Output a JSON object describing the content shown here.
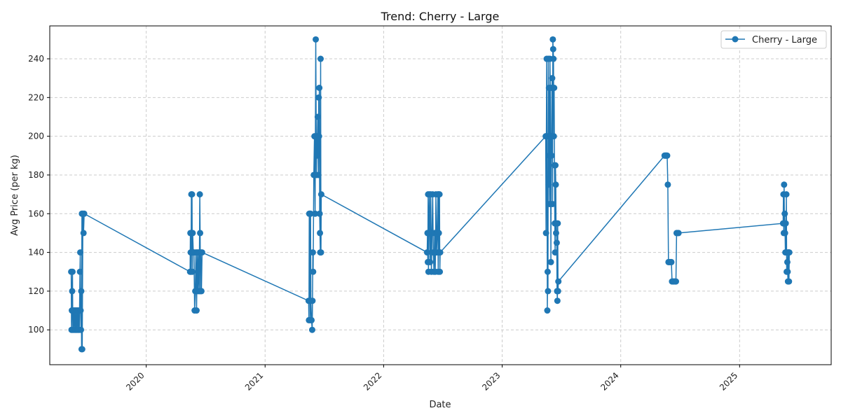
{
  "chart_data": {
    "type": "line",
    "title": "Trend: Cherry - Large",
    "xlabel": "Date",
    "ylabel": "Avg Price (per kg)",
    "x_ticks": [
      "2020",
      "2021",
      "2022",
      "2023",
      "2024",
      "2025"
    ],
    "y_ticks": [
      100,
      120,
      140,
      160,
      180,
      200,
      220,
      240
    ],
    "xlim": [
      "2019-03-10",
      "2025-10-10"
    ],
    "ylim": [
      82,
      257
    ],
    "grid": true,
    "legend_position": "top-right",
    "colors": {
      "series": "#1f77b4",
      "grid": "#cccccc"
    },
    "series": [
      {
        "name": "Cherry - Large",
        "marker": "circle",
        "points": [
          [
            "2019-05-15",
            130
          ],
          [
            "2019-05-16",
            100
          ],
          [
            "2019-05-17",
            110
          ],
          [
            "2019-05-18",
            120
          ],
          [
            "2019-05-19",
            130
          ],
          [
            "2019-05-20",
            100
          ],
          [
            "2019-05-22",
            110
          ],
          [
            "2019-05-24",
            100
          ],
          [
            "2019-05-26",
            110
          ],
          [
            "2019-05-28",
            100
          ],
          [
            "2019-05-30",
            110
          ],
          [
            "2019-06-01",
            100
          ],
          [
            "2019-06-03",
            110
          ],
          [
            "2019-06-05",
            100
          ],
          [
            "2019-06-07",
            110
          ],
          [
            "2019-06-09",
            100
          ],
          [
            "2019-06-11",
            130
          ],
          [
            "2019-06-12",
            140
          ],
          [
            "2019-06-13",
            110
          ],
          [
            "2019-06-14",
            100
          ],
          [
            "2019-06-15",
            120
          ],
          [
            "2019-06-16",
            90
          ],
          [
            "2019-06-17",
            160
          ],
          [
            "2019-06-18",
            90
          ],
          [
            "2019-06-20",
            160
          ],
          [
            "2019-06-22",
            150
          ],
          [
            "2019-06-24",
            160
          ],
          [
            "2020-05-15",
            130
          ],
          [
            "2020-05-16",
            150
          ],
          [
            "2020-05-17",
            140
          ],
          [
            "2020-05-18",
            130
          ],
          [
            "2020-05-19",
            170
          ],
          [
            "2020-05-20",
            140
          ],
          [
            "2020-05-21",
            170
          ],
          [
            "2020-05-22",
            130
          ],
          [
            "2020-05-23",
            150
          ],
          [
            "2020-05-25",
            140
          ],
          [
            "2020-05-27",
            140
          ],
          [
            "2020-05-29",
            110
          ],
          [
            "2020-05-31",
            120
          ],
          [
            "2020-06-02",
            140
          ],
          [
            "2020-06-04",
            110
          ],
          [
            "2020-06-06",
            140
          ],
          [
            "2020-06-08",
            120
          ],
          [
            "2020-06-10",
            140
          ],
          [
            "2020-06-12",
            120
          ],
          [
            "2020-06-14",
            170
          ],
          [
            "2020-06-15",
            150
          ],
          [
            "2020-06-16",
            120
          ],
          [
            "2020-06-17",
            140
          ],
          [
            "2020-06-19",
            120
          ],
          [
            "2020-06-21",
            140
          ],
          [
            "2021-05-15",
            115
          ],
          [
            "2021-05-16",
            105
          ],
          [
            "2021-05-17",
            160
          ],
          [
            "2021-05-18",
            115
          ],
          [
            "2021-05-19",
            160
          ],
          [
            "2021-05-20",
            105
          ],
          [
            "2021-05-21",
            160
          ],
          [
            "2021-05-22",
            115
          ],
          [
            "2021-05-24",
            105
          ],
          [
            "2021-05-26",
            100
          ],
          [
            "2021-05-27",
            115
          ],
          [
            "2021-05-28",
            140
          ],
          [
            "2021-05-29",
            130
          ],
          [
            "2021-05-31",
            180
          ],
          [
            "2021-06-02",
            200
          ],
          [
            "2021-06-04",
            160
          ],
          [
            "2021-06-06",
            250
          ],
          [
            "2021-06-08",
            180
          ],
          [
            "2021-06-09",
            200
          ],
          [
            "2021-06-10",
            190
          ],
          [
            "2021-06-12",
            210
          ],
          [
            "2021-06-14",
            180
          ],
          [
            "2021-06-15",
            220
          ],
          [
            "2021-06-16",
            200
          ],
          [
            "2021-06-17",
            225
          ],
          [
            "2021-06-18",
            160
          ],
          [
            "2021-06-19",
            150
          ],
          [
            "2021-06-20",
            140
          ],
          [
            "2021-06-21",
            240
          ],
          [
            "2021-06-22",
            140
          ],
          [
            "2021-06-23",
            170
          ],
          [
            "2022-05-15",
            140
          ],
          [
            "2022-05-16",
            150
          ],
          [
            "2022-05-17",
            135
          ],
          [
            "2022-05-18",
            170
          ],
          [
            "2022-05-19",
            130
          ],
          [
            "2022-05-20",
            150
          ],
          [
            "2022-05-22",
            170
          ],
          [
            "2022-05-24",
            135
          ],
          [
            "2022-05-26",
            170
          ],
          [
            "2022-05-28",
            130
          ],
          [
            "2022-05-30",
            150
          ],
          [
            "2022-06-01",
            170
          ],
          [
            "2022-06-03",
            140
          ],
          [
            "2022-06-05",
            130
          ],
          [
            "2022-06-07",
            150
          ],
          [
            "2022-06-09",
            130
          ],
          [
            "2022-06-11",
            170
          ],
          [
            "2022-06-13",
            140
          ],
          [
            "2022-06-15",
            150
          ],
          [
            "2022-06-17",
            170
          ],
          [
            "2022-06-18",
            130
          ],
          [
            "2022-06-19",
            170
          ],
          [
            "2022-06-20",
            150
          ],
          [
            "2022-06-21",
            140
          ],
          [
            "2022-06-22",
            170
          ],
          [
            "2022-06-23",
            130
          ],
          [
            "2022-06-24",
            140
          ],
          [
            "2023-05-15",
            200
          ],
          [
            "2023-05-16",
            150
          ],
          [
            "2023-05-17",
            200
          ],
          [
            "2023-05-18",
            240
          ],
          [
            "2023-05-19",
            200
          ],
          [
            "2023-05-20",
            110
          ],
          [
            "2023-05-21",
            130
          ],
          [
            "2023-05-22",
            120
          ],
          [
            "2023-05-23",
            240
          ],
          [
            "2023-05-24",
            175
          ],
          [
            "2023-05-25",
            225
          ],
          [
            "2023-05-26",
            190
          ],
          [
            "2023-05-27",
            165
          ],
          [
            "2023-05-28",
            240
          ],
          [
            "2023-05-29",
            225
          ],
          [
            "2023-05-30",
            200
          ],
          [
            "2023-05-31",
            135
          ],
          [
            "2023-06-01",
            200
          ],
          [
            "2023-06-02",
            190
          ],
          [
            "2023-06-03",
            225
          ],
          [
            "2023-06-04",
            230
          ],
          [
            "2023-06-05",
            165
          ],
          [
            "2023-06-06",
            250
          ],
          [
            "2023-06-07",
            245
          ],
          [
            "2023-06-08",
            240
          ],
          [
            "2023-06-09",
            200
          ],
          [
            "2023-06-10",
            225
          ],
          [
            "2023-06-11",
            185
          ],
          [
            "2023-06-12",
            155
          ],
          [
            "2023-06-13",
            140
          ],
          [
            "2023-06-14",
            185
          ],
          [
            "2023-06-15",
            175
          ],
          [
            "2023-06-16",
            150
          ],
          [
            "2023-06-17",
            155
          ],
          [
            "2023-06-18",
            145
          ],
          [
            "2023-06-19",
            120
          ],
          [
            "2023-06-20",
            115
          ],
          [
            "2023-06-21",
            155
          ],
          [
            "2023-06-22",
            120
          ],
          [
            "2023-06-23",
            125
          ],
          [
            "2024-05-15",
            190
          ],
          [
            "2024-05-17",
            190
          ],
          [
            "2024-05-19",
            190
          ],
          [
            "2024-05-21",
            190
          ],
          [
            "2024-05-23",
            190
          ],
          [
            "2024-05-25",
            175
          ],
          [
            "2024-05-27",
            135
          ],
          [
            "2024-05-29",
            135
          ],
          [
            "2024-06-01",
            135
          ],
          [
            "2024-06-03",
            135
          ],
          [
            "2024-06-05",
            135
          ],
          [
            "2024-06-07",
            125
          ],
          [
            "2024-06-10",
            125
          ],
          [
            "2024-06-13",
            125
          ],
          [
            "2024-06-16",
            125
          ],
          [
            "2024-06-19",
            125
          ],
          [
            "2024-06-21",
            150
          ],
          [
            "2024-06-24",
            150
          ],
          [
            "2024-06-27",
            150
          ],
          [
            "2025-05-15",
            155
          ],
          [
            "2025-05-16",
            170
          ],
          [
            "2025-05-17",
            150
          ],
          [
            "2025-05-18",
            175
          ],
          [
            "2025-05-19",
            155
          ],
          [
            "2025-05-20",
            160
          ],
          [
            "2025-05-21",
            150
          ],
          [
            "2025-05-22",
            140
          ],
          [
            "2025-05-23",
            155
          ],
          [
            "2025-05-24",
            140
          ],
          [
            "2025-05-25",
            170
          ],
          [
            "2025-05-26",
            130
          ],
          [
            "2025-05-27",
            140
          ],
          [
            "2025-05-28",
            135
          ],
          [
            "2025-05-29",
            130
          ],
          [
            "2025-05-30",
            125
          ],
          [
            "2025-05-31",
            140
          ],
          [
            "2025-06-01",
            140
          ],
          [
            "2025-06-02",
            125
          ],
          [
            "2025-06-03",
            140
          ]
        ]
      }
    ]
  }
}
